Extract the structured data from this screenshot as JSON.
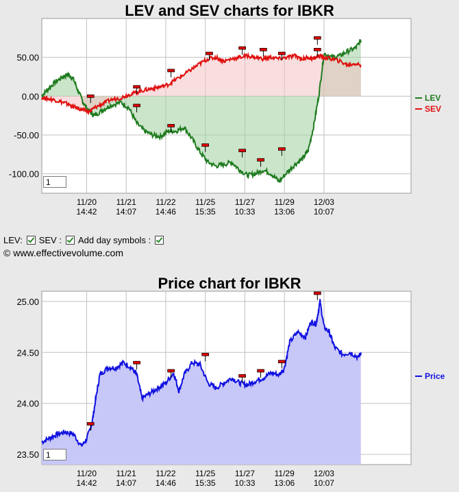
{
  "lev_chart": {
    "title": "LEV and SEV charts for IBKR",
    "page_input_value": "1",
    "chart_data": {
      "type": "line",
      "title": "LEV and SEV charts for IBKR",
      "yticks": [
        "50.00",
        "0.00",
        "-50.00",
        "-100.00"
      ],
      "ytick_values": [
        50,
        0,
        -50,
        -100
      ],
      "ylim": [
        -125,
        100
      ],
      "xlim": [
        0,
        14
      ],
      "x_ticks": [
        {
          "x": 1.7,
          "date": "11/20",
          "time": "14:42"
        },
        {
          "x": 3.2,
          "date": "11/21",
          "time": "14:07"
        },
        {
          "x": 4.7,
          "date": "11/22",
          "time": "14:46"
        },
        {
          "x": 6.2,
          "date": "11/25",
          "time": "15:35"
        },
        {
          "x": 7.7,
          "date": "11/27",
          "time": "10:33"
        },
        {
          "x": 9.2,
          "date": "11/29",
          "time": "13:06"
        },
        {
          "x": 10.7,
          "date": "12/03",
          "time": "10:07"
        }
      ],
      "legend": [
        {
          "name": "LEV",
          "color": "#1e7a1e"
        },
        {
          "name": "SEV",
          "color": "#e01010"
        }
      ],
      "legend_position": "right",
      "series": [
        {
          "name": "LEV",
          "color": "#1e7a1e",
          "fill": "#9ed09e",
          "x": [
            0,
            0.2,
            0.5,
            0.8,
            1.0,
            1.2,
            1.4,
            1.6,
            1.8,
            2.0,
            2.3,
            2.6,
            3.0,
            3.3,
            3.6,
            3.9,
            4.2,
            4.5,
            4.8,
            5.1,
            5.4,
            5.7,
            6.0,
            6.3,
            6.6,
            6.9,
            7.2,
            7.5,
            7.8,
            8.1,
            8.4,
            8.7,
            9.0,
            9.3,
            9.6,
            9.9,
            10.1,
            10.3,
            10.5,
            10.7,
            11.0,
            11.3,
            11.6,
            11.9,
            12.1
          ],
          "values": [
            0,
            8,
            18,
            25,
            28,
            22,
            5,
            -10,
            -20,
            -25,
            -18,
            -12,
            -8,
            -15,
            -35,
            -45,
            -50,
            -52,
            -45,
            -45,
            -40,
            -55,
            -72,
            -85,
            -90,
            -88,
            -85,
            -95,
            -102,
            -100,
            -95,
            -100,
            -110,
            -98,
            -88,
            -80,
            -70,
            -40,
            0,
            55,
            50,
            52,
            58,
            62,
            72
          ]
        },
        {
          "name": "SEV",
          "color": "#e01010",
          "fill": "#f2c2c2",
          "x": [
            0,
            0.2,
            0.5,
            0.8,
            1.0,
            1.2,
            1.4,
            1.6,
            1.8,
            2.0,
            2.3,
            2.6,
            3.0,
            3.3,
            3.6,
            3.9,
            4.2,
            4.5,
            4.8,
            5.1,
            5.4,
            5.7,
            6.0,
            6.3,
            6.6,
            6.9,
            7.2,
            7.5,
            7.8,
            8.1,
            8.4,
            8.7,
            9.0,
            9.3,
            9.6,
            9.9,
            10.1,
            10.3,
            10.5,
            10.7,
            11.0,
            11.3,
            11.6,
            11.9,
            12.1
          ],
          "values": [
            -2,
            -3,
            -5,
            -8,
            -10,
            -14,
            -16,
            -18,
            -20,
            -15,
            -10,
            -5,
            -2,
            2,
            5,
            8,
            10,
            12,
            15,
            22,
            28,
            35,
            42,
            48,
            50,
            45,
            48,
            50,
            52,
            50,
            48,
            50,
            48,
            50,
            52,
            48,
            50,
            48,
            52,
            50,
            48,
            45,
            40,
            42,
            40
          ]
        }
      ],
      "day_markers": [
        {
          "x": 1.85,
          "y": 0
        },
        {
          "x": 3.6,
          "y": 12
        },
        {
          "x": 3.6,
          "y": -12
        },
        {
          "x": 4.9,
          "y": 33
        },
        {
          "x": 4.9,
          "y": -38
        },
        {
          "x": 6.2,
          "y": -63
        },
        {
          "x": 6.35,
          "y": 55
        },
        {
          "x": 7.6,
          "y": 62
        },
        {
          "x": 7.6,
          "y": -70
        },
        {
          "x": 8.4,
          "y": 60
        },
        {
          "x": 8.3,
          "y": -82
        },
        {
          "x": 9.1,
          "y": 55
        },
        {
          "x": 9.1,
          "y": -68
        },
        {
          "x": 10.45,
          "y": 75
        },
        {
          "x": 10.45,
          "y": 60
        }
      ]
    }
  },
  "controls": {
    "lev_label": "LEV:",
    "sev_label": "SEV :",
    "day_symbols_label": "Add day symbols :"
  },
  "copyright": "© www.effectivevolume.com",
  "price_chart": {
    "title": "Price chart for IBKR",
    "page_input_value": "1",
    "chart_data": {
      "type": "area",
      "title": "Price chart for IBKR",
      "yticks": [
        "25.00",
        "24.50",
        "24.00",
        "23.50"
      ],
      "ytick_values": [
        25.0,
        24.5,
        24.0,
        23.5
      ],
      "ylim": [
        23.4,
        25.1
      ],
      "xlim": [
        0,
        14
      ],
      "x_ticks": [
        {
          "x": 1.7,
          "date": "11/20",
          "time": "14:42"
        },
        {
          "x": 3.2,
          "date": "11/21",
          "time": "14:07"
        },
        {
          "x": 4.7,
          "date": "11/22",
          "time": "14:46"
        },
        {
          "x": 6.2,
          "date": "11/25",
          "time": "15:35"
        },
        {
          "x": 7.7,
          "date": "11/27",
          "time": "10:33"
        },
        {
          "x": 9.2,
          "date": "11/29",
          "time": "13:06"
        },
        {
          "x": 10.7,
          "date": "12/03",
          "time": "10:07"
        }
      ],
      "legend": [
        {
          "name": "Price",
          "color": "#1010e0"
        }
      ],
      "legend_position": "right",
      "series": [
        {
          "name": "Price",
          "color": "#1010e0",
          "fill": "#c8c8f8",
          "x": [
            0,
            0.3,
            0.6,
            0.9,
            1.2,
            1.5,
            1.7,
            1.9,
            2.05,
            2.2,
            2.5,
            2.8,
            3.1,
            3.4,
            3.6,
            3.8,
            4.1,
            4.4,
            4.7,
            5.0,
            5.2,
            5.4,
            5.7,
            6.0,
            6.3,
            6.6,
            6.9,
            7.2,
            7.5,
            7.8,
            8.1,
            8.4,
            8.7,
            9.0,
            9.2,
            9.4,
            9.7,
            10.0,
            10.2,
            10.4,
            10.55,
            10.7,
            10.9,
            11.1,
            11.4,
            11.7,
            12.0,
            12.1
          ],
          "values": [
            23.62,
            23.66,
            23.7,
            23.72,
            23.7,
            23.58,
            23.65,
            23.8,
            24.05,
            24.28,
            24.35,
            24.35,
            24.4,
            24.35,
            24.28,
            24.05,
            24.1,
            24.15,
            24.2,
            24.3,
            24.12,
            24.28,
            24.4,
            24.38,
            24.2,
            24.15,
            24.2,
            24.25,
            24.2,
            24.18,
            24.22,
            24.25,
            24.3,
            24.28,
            24.35,
            24.6,
            24.7,
            24.65,
            24.8,
            24.78,
            25.0,
            24.75,
            24.7,
            24.55,
            24.48,
            24.5,
            24.45,
            24.5
          ]
        }
      ],
      "day_markers": [
        {
          "x": 1.85,
          "y": 23.8
        },
        {
          "x": 3.6,
          "y": 24.4
        },
        {
          "x": 4.9,
          "y": 24.32
        },
        {
          "x": 6.2,
          "y": 24.48
        },
        {
          "x": 7.6,
          "y": 24.27
        },
        {
          "x": 8.3,
          "y": 24.32
        },
        {
          "x": 9.1,
          "y": 24.41
        },
        {
          "x": 10.45,
          "y": 25.08
        }
      ]
    }
  }
}
